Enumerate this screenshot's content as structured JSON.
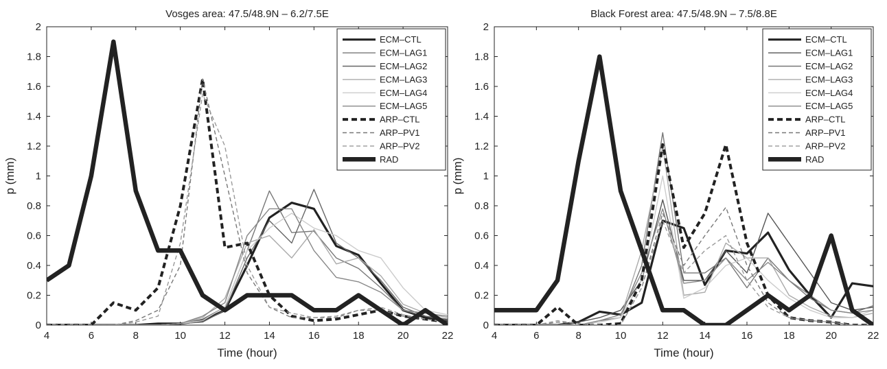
{
  "chart_data": [
    {
      "type": "line",
      "title": "Vosges area: 47.5/48.9N – 6.2/7.5E",
      "xlabel": "Time (hour)",
      "ylabel": "p (mm)",
      "xlim": [
        4,
        22
      ],
      "ylim": [
        0,
        2
      ],
      "xticks": [
        "4",
        "6",
        "8",
        "10",
        "12",
        "14",
        "16",
        "18",
        "20",
        "22"
      ],
      "yticks": [
        "0",
        "0.2",
        "0.4",
        "0.6",
        "0.8",
        "1",
        "1.2",
        "1.4",
        "1.6",
        "1.8",
        "2"
      ],
      "grid": false,
      "legend_position": "top-right",
      "x": [
        4,
        5,
        6,
        7,
        8,
        9,
        10,
        11,
        12,
        13,
        14,
        15,
        16,
        17,
        18,
        19,
        20,
        21,
        22
      ],
      "series": [
        {
          "name": "ECM–CTL",
          "color": "#222222",
          "style": "thick",
          "values": [
            0,
            0,
            0,
            0,
            0,
            0.01,
            0.01,
            0.03,
            0.1,
            0.4,
            0.72,
            0.82,
            0.78,
            0.53,
            0.47,
            0.28,
            0.1,
            0.05,
            0.03
          ]
        },
        {
          "name": "ECM–LAG1",
          "color": "#777777",
          "style": "thin",
          "values": [
            0,
            0,
            0,
            0,
            0,
            0,
            0.01,
            0.04,
            0.12,
            0.5,
            0.9,
            0.62,
            0.63,
            0.45,
            0.38,
            0.25,
            0.1,
            0.06,
            0.04
          ]
        },
        {
          "name": "ECM–LAG2",
          "color": "#666666",
          "style": "thin",
          "values": [
            0,
            0,
            0,
            0,
            0,
            0,
            0.01,
            0.02,
            0.1,
            0.45,
            0.7,
            0.55,
            0.91,
            0.55,
            0.45,
            0.3,
            0.12,
            0.06,
            0.03
          ]
        },
        {
          "name": "ECM–LAG3",
          "color": "#aaaaaa",
          "style": "thin",
          "values": [
            0,
            0,
            0,
            0,
            0,
            0,
            0.01,
            0.05,
            0.18,
            0.55,
            0.6,
            0.45,
            0.64,
            0.41,
            0.45,
            0.33,
            0.14,
            0.08,
            0.05
          ]
        },
        {
          "name": "ECM–LAG4",
          "color": "#cccccc",
          "style": "thin",
          "values": [
            0,
            0,
            0,
            0,
            0,
            0,
            0.01,
            0.03,
            0.12,
            0.5,
            0.65,
            0.75,
            0.65,
            0.6,
            0.5,
            0.45,
            0.25,
            0.1,
            0.07
          ]
        },
        {
          "name": "ECM–LAG5",
          "color": "#888888",
          "style": "thin",
          "values": [
            0,
            0,
            0,
            0,
            0,
            0,
            0.01,
            0.06,
            0.15,
            0.6,
            0.78,
            0.78,
            0.5,
            0.32,
            0.29,
            0.22,
            0.1,
            0.08,
            0.06
          ]
        },
        {
          "name": "ARP–CTL",
          "color": "#222222",
          "style": "dash-thick",
          "values": [
            0,
            0,
            0,
            0.15,
            0.1,
            0.25,
            0.8,
            1.65,
            0.52,
            0.55,
            0.2,
            0.06,
            0.03,
            0.04,
            0.07,
            0.1,
            0.06,
            0.04,
            0.02
          ]
        },
        {
          "name": "ARP–PV1",
          "color": "#777777",
          "style": "dash",
          "values": [
            0,
            0,
            0,
            0,
            0.03,
            0.1,
            0.4,
            1.65,
            1.0,
            0.35,
            0.12,
            0.05,
            0.05,
            0.05,
            0.1,
            0.1,
            0.06,
            0.04,
            0.02
          ]
        },
        {
          "name": "ARP–PV2",
          "color": "#999999",
          "style": "dash",
          "values": [
            0,
            0,
            0,
            0,
            0.02,
            0.06,
            0.55,
            1.55,
            1.2,
            0.4,
            0.12,
            0.08,
            0.05,
            0.06,
            0.1,
            0.12,
            0.07,
            0.04,
            0.02
          ]
        },
        {
          "name": "RAD",
          "color": "#222222",
          "style": "very-thick",
          "values": [
            0.3,
            0.4,
            1.0,
            1.9,
            0.9,
            0.5,
            0.5,
            0.2,
            0.1,
            0.2,
            0.2,
            0.2,
            0.1,
            0.1,
            0.2,
            0.1,
            0,
            0.1,
            0
          ]
        }
      ]
    },
    {
      "type": "line",
      "title": "Black Forest area: 47.5/48.9N – 7.5/8.8E",
      "xlabel": "Time (hour)",
      "ylabel": "p (mm)",
      "xlim": [
        4,
        22
      ],
      "ylim": [
        0,
        2
      ],
      "xticks": [
        "4",
        "6",
        "8",
        "10",
        "12",
        "14",
        "16",
        "18",
        "20",
        "22"
      ],
      "yticks": [
        "0",
        "0.2",
        "0.4",
        "0.6",
        "0.8",
        "1",
        "1.2",
        "1.4",
        "1.6",
        "1.8",
        "2"
      ],
      "grid": false,
      "legend_position": "top-right",
      "x": [
        4,
        5,
        6,
        7,
        8,
        9,
        10,
        11,
        12,
        13,
        14,
        15,
        16,
        17,
        18,
        19,
        20,
        21,
        22
      ],
      "series": [
        {
          "name": "ECM–CTL",
          "color": "#222222",
          "style": "thick",
          "values": [
            0,
            0,
            0,
            0,
            0.02,
            0.09,
            0.07,
            0.15,
            0.7,
            0.65,
            0.27,
            0.5,
            0.48,
            0.62,
            0.37,
            0.2,
            0.05,
            0.28,
            0.26
          ]
        },
        {
          "name": "ECM–LAG1",
          "color": "#555555",
          "style": "thin",
          "values": [
            0,
            0,
            0,
            0,
            0.02,
            0.05,
            0.1,
            0.3,
            0.84,
            0.3,
            0.3,
            0.5,
            0.35,
            0.75,
            0.55,
            0.35,
            0.15,
            0.1,
            0.12
          ]
        },
        {
          "name": "ECM–LAG2",
          "color": "#777777",
          "style": "thin",
          "values": [
            0,
            0,
            0,
            0,
            0,
            0.03,
            0.05,
            0.4,
            1.29,
            0.35,
            0.35,
            0.45,
            0.25,
            0.45,
            0.3,
            0.18,
            0.1,
            0.08,
            0.13
          ]
        },
        {
          "name": "ECM–LAG3",
          "color": "#aaaaaa",
          "style": "thin",
          "values": [
            0,
            0,
            0,
            0,
            0,
            0.02,
            0.05,
            0.5,
            1.2,
            0.2,
            0.22,
            0.55,
            0.45,
            0.45,
            0.2,
            0.12,
            0.06,
            0.05,
            0.08
          ]
        },
        {
          "name": "ECM–LAG4",
          "color": "#cccccc",
          "style": "thin",
          "values": [
            0,
            0,
            0,
            0,
            0,
            0.02,
            0.05,
            0.3,
            1.0,
            0.18,
            0.25,
            0.4,
            0.45,
            0.3,
            0.18,
            0.1,
            0.05,
            0.05,
            0.1
          ]
        },
        {
          "name": "ECM–LAG5",
          "color": "#888888",
          "style": "thin",
          "values": [
            0,
            0,
            0,
            0,
            0,
            0.03,
            0.07,
            0.35,
            0.78,
            0.28,
            0.3,
            0.45,
            0.3,
            0.42,
            0.3,
            0.2,
            0.1,
            0.08,
            0.1
          ]
        },
        {
          "name": "ARP–CTL",
          "color": "#222222",
          "style": "dash-thick",
          "values": [
            0,
            0,
            0,
            0.12,
            0,
            0,
            0.01,
            0.3,
            1.21,
            0.52,
            0.75,
            1.21,
            0.55,
            0.2,
            0.05,
            0.03,
            0.02,
            0,
            0
          ]
        },
        {
          "name": "ARP–PV1",
          "color": "#777777",
          "style": "dash",
          "values": [
            0,
            0,
            0,
            0.02,
            0.01,
            0,
            0,
            0.25,
            0.75,
            0.4,
            0.6,
            0.79,
            0.4,
            0.15,
            0.05,
            0.03,
            0.02,
            0,
            0
          ]
        },
        {
          "name": "ARP–PV2",
          "color": "#999999",
          "style": "dash",
          "values": [
            0,
            0,
            0,
            0.03,
            0.01,
            0,
            0,
            0.25,
            0.7,
            0.35,
            0.5,
            0.6,
            0.3,
            0.12,
            0.05,
            0.03,
            0.02,
            0,
            0
          ]
        },
        {
          "name": "RAD",
          "color": "#222222",
          "style": "very-thick",
          "values": [
            0.1,
            0.1,
            0.1,
            0.3,
            1.1,
            1.8,
            0.9,
            0.5,
            0.1,
            0.1,
            0,
            0,
            0.1,
            0.2,
            0.1,
            0.2,
            0.6,
            0.1,
            0
          ]
        }
      ]
    }
  ]
}
